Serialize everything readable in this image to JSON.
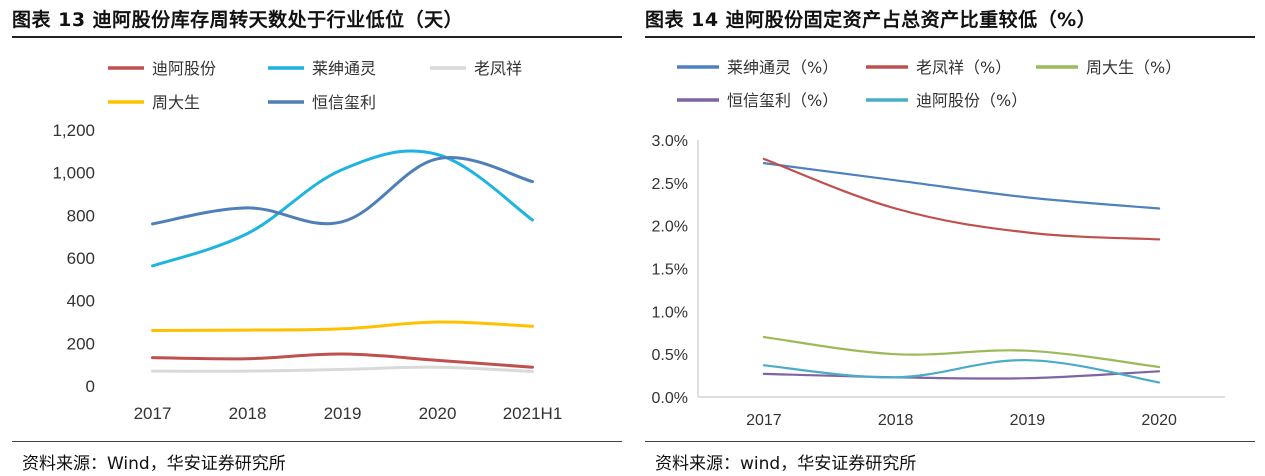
{
  "left": {
    "title": "图表 13 迪阿股份库存周转天数处于行业低位（天）",
    "source": "资料来源：Wind，华安证券研究所"
  },
  "right": {
    "title": "图表 14 迪阿股份固定资产占总资产比重较低（%）",
    "source": "资料来源：wind，华安证券研究所"
  },
  "chart_data": [
    {
      "type": "line",
      "title": "图表 13 迪阿股份库存周转天数处于行业低位（天）",
      "categories": [
        "2017",
        "2018",
        "2019",
        "2020",
        "2021H1"
      ],
      "ylim": [
        0,
        1200
      ],
      "yticks": [
        "0",
        "200",
        "400",
        "600",
        "800",
        "1,000",
        "1,200"
      ],
      "ytick_values": [
        0,
        200,
        400,
        600,
        800,
        1000,
        1200
      ],
      "grid": false,
      "legend_position": "top",
      "series": [
        {
          "name": "迪阿股份",
          "color": "#c0504d",
          "values": [
            133,
            128,
            150,
            120,
            88
          ]
        },
        {
          "name": "莱绅通灵",
          "color": "#1fb4e0",
          "values": [
            563,
            715,
            1015,
            1085,
            778
          ]
        },
        {
          "name": "老凤祥",
          "color": "#d9d9d9",
          "values": [
            70,
            70,
            78,
            88,
            68
          ]
        },
        {
          "name": "周大生",
          "color": "#ffc000",
          "values": [
            260,
            262,
            268,
            300,
            280
          ]
        },
        {
          "name": "恒信玺利",
          "color": "#4f7fb8",
          "values": [
            760,
            835,
            770,
            1065,
            958
          ]
        }
      ]
    },
    {
      "type": "line",
      "title": "图表 14 迪阿股份固定资产占总资产比重较低（%）",
      "categories": [
        "2017",
        "2018",
        "2019",
        "2020"
      ],
      "ylim": [
        0,
        3.0
      ],
      "yticks": [
        "0.0%",
        "0.5%",
        "1.0%",
        "1.5%",
        "2.0%",
        "2.5%",
        "3.0%"
      ],
      "ytick_values": [
        0,
        0.5,
        1.0,
        1.5,
        2.0,
        2.5,
        3.0
      ],
      "grid": false,
      "legend_position": "top",
      "series": [
        {
          "name": "莱绅通灵（%）",
          "color": "#4f81bd",
          "values": [
            2.73,
            2.53,
            2.33,
            2.2
          ]
        },
        {
          "name": "老凤祥（%）",
          "color": "#c0504d",
          "values": [
            2.78,
            2.2,
            1.92,
            1.84
          ]
        },
        {
          "name": "周大生（%）",
          "color": "#9bbb59",
          "values": [
            0.7,
            0.5,
            0.54,
            0.35
          ]
        },
        {
          "name": "恒信玺利（%）",
          "color": "#8064a2",
          "values": [
            0.27,
            0.23,
            0.22,
            0.3
          ]
        },
        {
          "name": "迪阿股份（%）",
          "color": "#4bacc6",
          "values": [
            0.37,
            0.23,
            0.43,
            0.17
          ]
        }
      ]
    }
  ]
}
